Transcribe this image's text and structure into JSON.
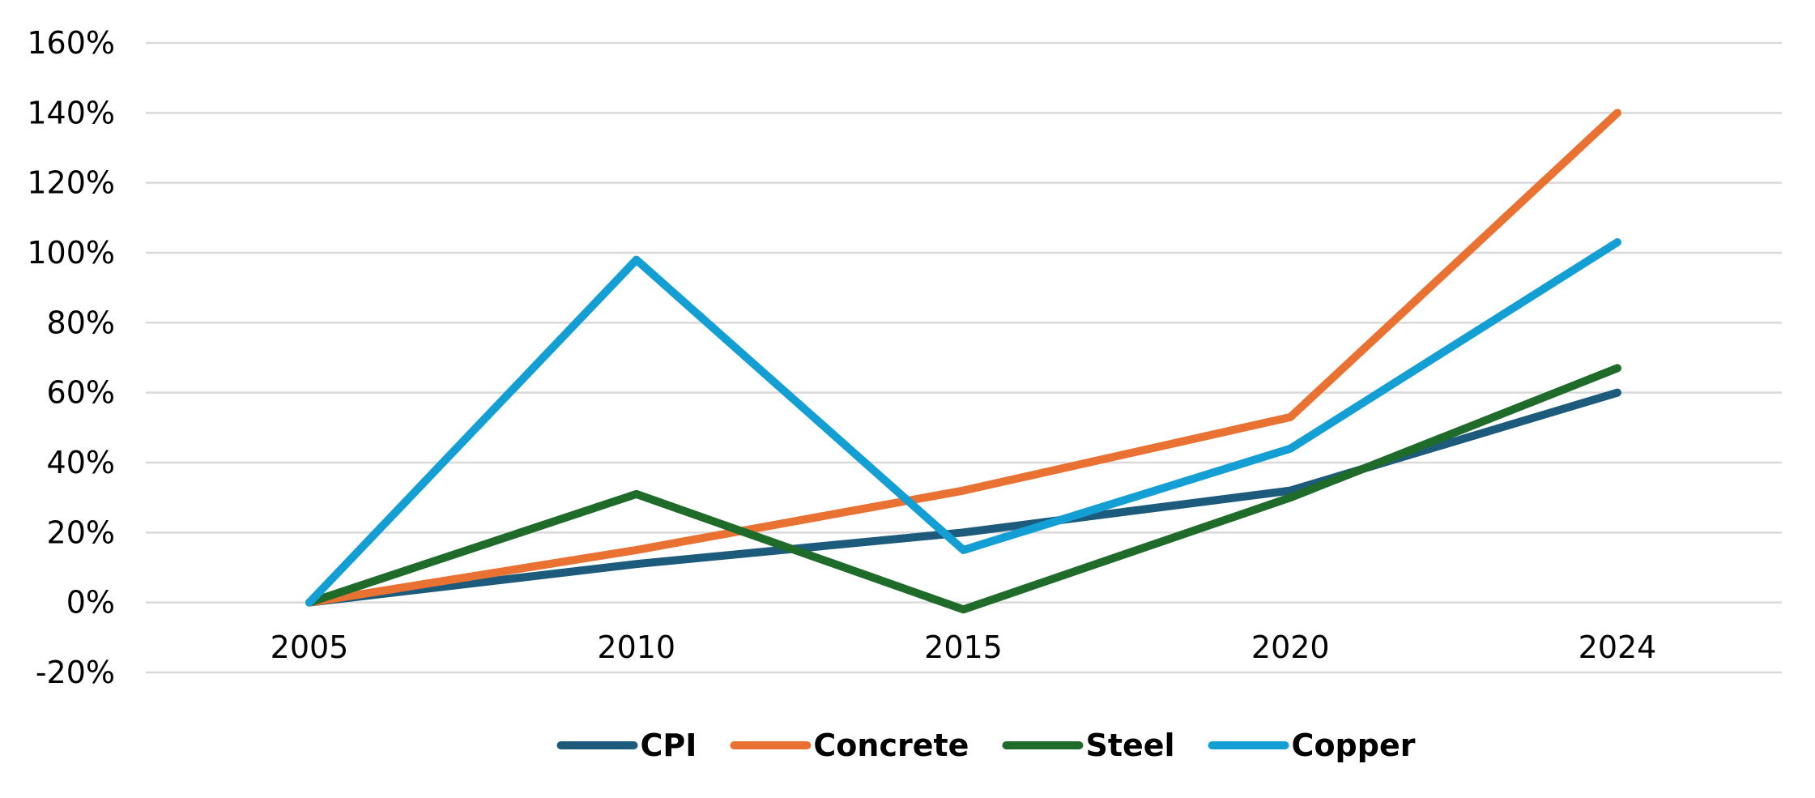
{
  "chart_data": {
    "type": "line",
    "x": [
      "2005",
      "2010",
      "2015",
      "2020",
      "2024"
    ],
    "y_ticks": [
      "-20%",
      "0%",
      "20%",
      "40%",
      "60%",
      "80%",
      "100%",
      "120%",
      "140%",
      "160%"
    ],
    "ylim": [
      -20,
      160
    ],
    "y_unit": "%",
    "grid": true,
    "legend_position": "bottom",
    "series": [
      {
        "name": "CPI",
        "color": "#1d5b7d",
        "values": [
          0,
          11,
          20,
          32,
          60
        ]
      },
      {
        "name": "Concrete",
        "color": "#e97132",
        "values": [
          0,
          15,
          32,
          53,
          140
        ]
      },
      {
        "name": "Steel",
        "color": "#1e6b2a",
        "values": [
          0,
          31,
          -2,
          30,
          67
        ]
      },
      {
        "name": "Copper",
        "color": "#139fd3",
        "values": [
          0,
          98,
          15,
          44,
          103
        ]
      }
    ]
  }
}
